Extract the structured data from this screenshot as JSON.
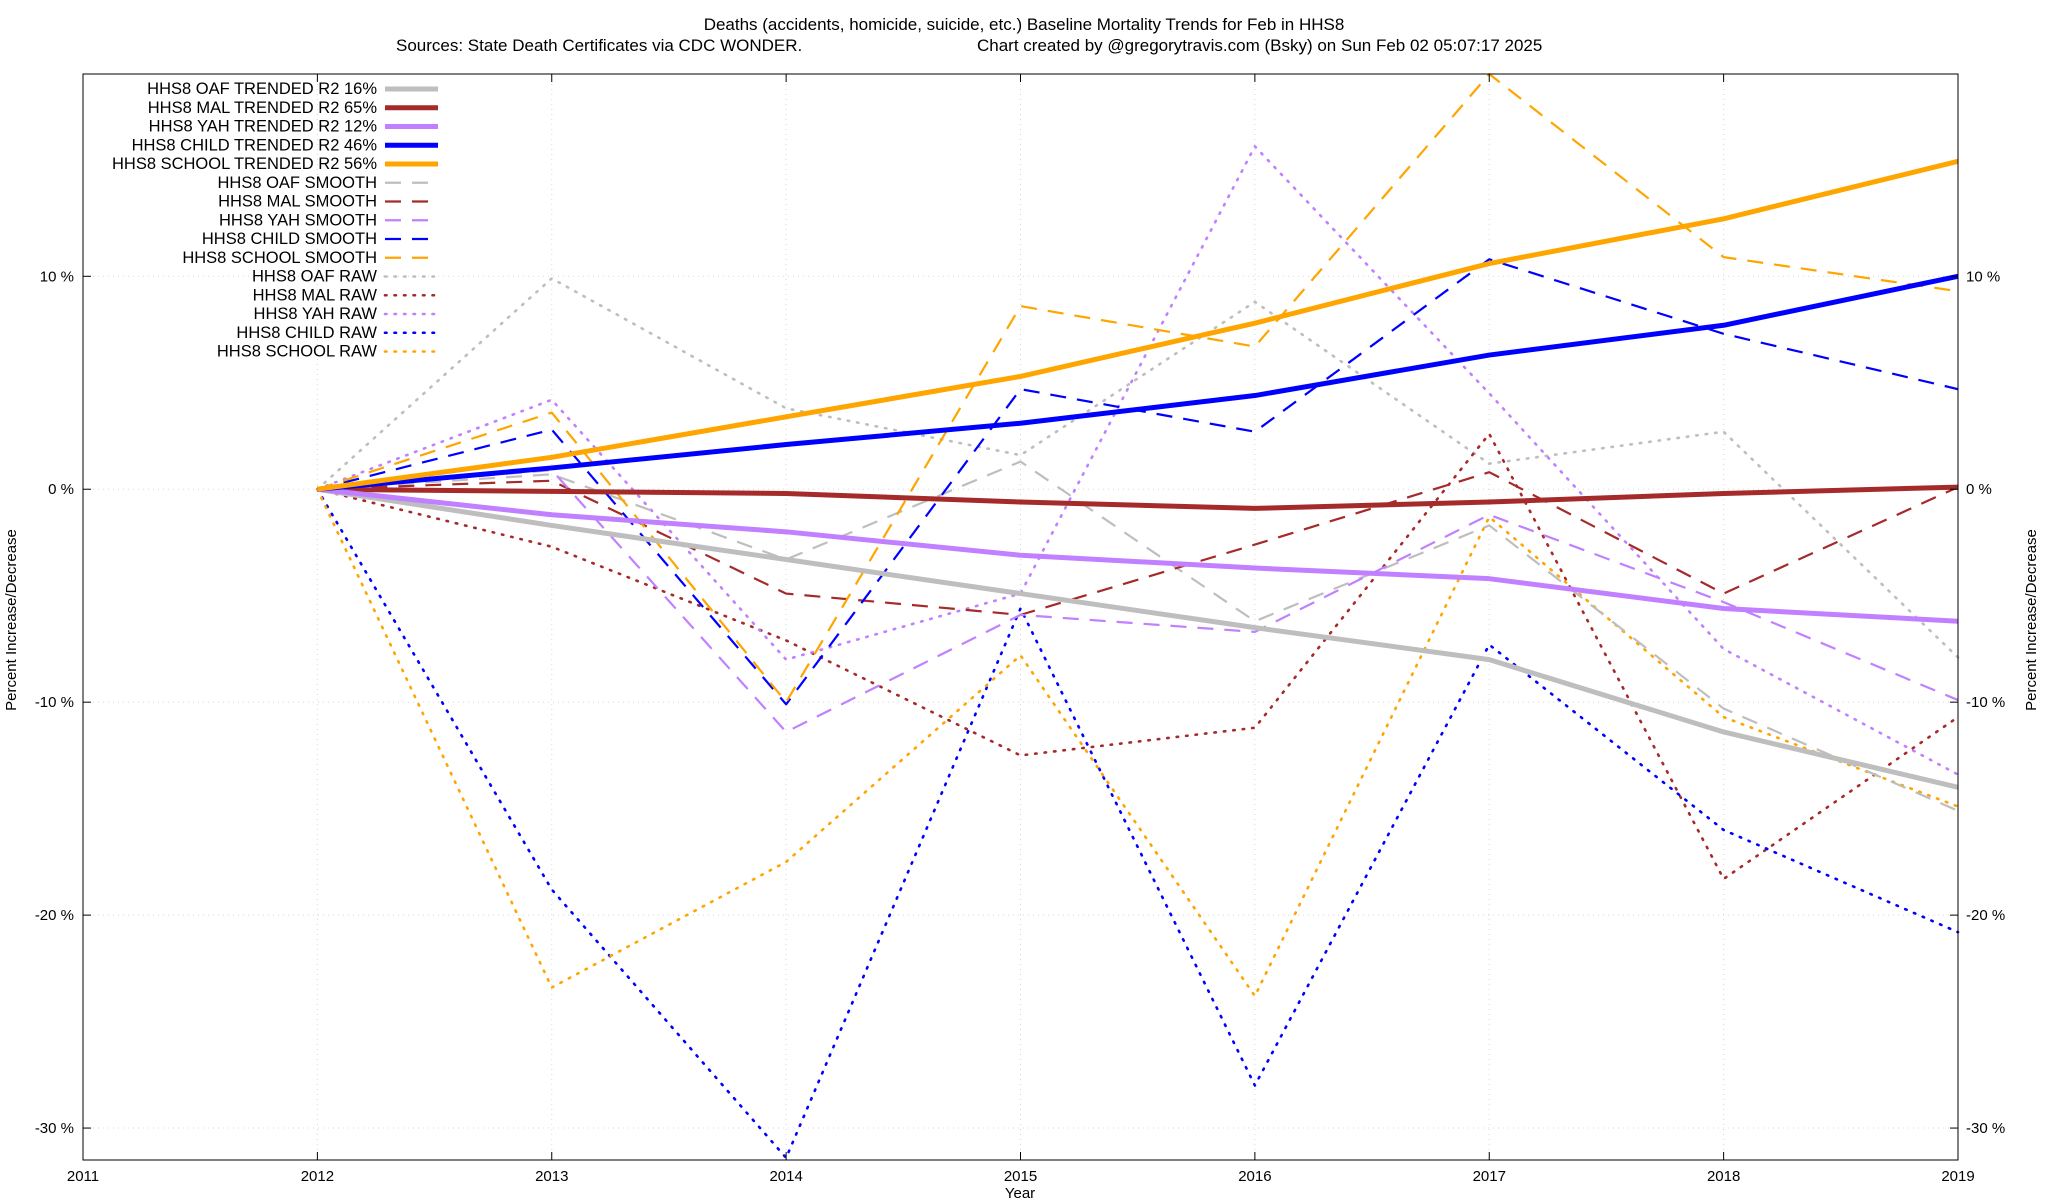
{
  "chart_data": {
    "type": "line",
    "title": "Deaths (accidents, homicide, suicide, etc.)  Baseline Mortality Trends for Feb in HHS8",
    "subtitle_left": "Sources: State Death Certificates via CDC WONDER.",
    "subtitle_right": "Chart created by @gregorytravis.com (Bsky) on Sun Feb 02 05:07:17 2025",
    "xlabel": "Year",
    "ylabel_left": "Percent Increase/Decrease",
    "ylabel_right": "Percent Increase/Decrease",
    "xlim": [
      2011,
      2019
    ],
    "ylim": [
      -31.5,
      19.5
    ],
    "x_ticks": [
      "2011",
      "2012",
      "2013",
      "2014",
      "2015",
      "2016",
      "2017",
      "2018",
      "2019"
    ],
    "y_ticks": [
      {
        "value": 10,
        "label": "10 %"
      },
      {
        "value": 0,
        "label": "0 %"
      },
      {
        "value": -10,
        "label": "-10 %"
      },
      {
        "value": -20,
        "label": "-20 %"
      },
      {
        "value": -30,
        "label": "-30 %"
      }
    ],
    "grid": true,
    "legend_position": "top-left",
    "x": [
      2012,
      2013,
      2014,
      2015,
      2016,
      2017,
      2018,
      2019
    ],
    "series": [
      {
        "name": "HHS8 OAF TRENDED R2  16%",
        "style": "trend",
        "color": "#bebebe",
        "values": [
          0,
          -1.7,
          -3.3,
          -4.9,
          -6.5,
          -8.0,
          -11.4,
          -14.0
        ]
      },
      {
        "name": "HHS8 MAL TRENDED R2  65%",
        "style": "trend",
        "color": "#a52a2a",
        "values": [
          0,
          -0.1,
          -0.2,
          -0.6,
          -0.9,
          -0.6,
          -0.2,
          0.1
        ]
      },
      {
        "name": "HHS8 YAH TRENDED R2  12%",
        "style": "trend",
        "color": "#c080ff",
        "values": [
          0,
          -1.2,
          -2.0,
          -3.1,
          -3.7,
          -4.2,
          -5.6,
          -6.2
        ]
      },
      {
        "name": "HHS8 CHILD TRENDED R2  46%",
        "style": "trend",
        "color": "#0000ff",
        "values": [
          0,
          1.0,
          2.1,
          3.1,
          4.4,
          6.3,
          7.7,
          10.0
        ]
      },
      {
        "name": "HHS8 SCHOOL TRENDED R2  56%",
        "style": "trend",
        "color": "#ffa500",
        "values": [
          0,
          1.5,
          3.4,
          5.3,
          7.8,
          10.6,
          12.7,
          15.4
        ]
      },
      {
        "name": "HHS8 OAF SMOOTH",
        "style": "smooth",
        "color": "#bebebe",
        "values": [
          0,
          0.7,
          -3.3,
          1.3,
          -6.2,
          -1.7,
          -10.3,
          -15.1
        ]
      },
      {
        "name": "HHS8 MAL SMOOTH",
        "style": "smooth",
        "color": "#a52a2a",
        "values": [
          0,
          0.4,
          -4.9,
          -5.9,
          -2.6,
          0.8,
          -4.9,
          0.1
        ]
      },
      {
        "name": "HHS8 YAH SMOOTH",
        "style": "smooth",
        "color": "#c080ff",
        "values": [
          0,
          0.9,
          -11.4,
          -5.9,
          -6.7,
          -1.2,
          -5.3,
          -9.9
        ]
      },
      {
        "name": "HHS8 CHILD SMOOTH",
        "style": "smooth",
        "color": "#0000ff",
        "values": [
          0,
          2.8,
          -10.1,
          4.7,
          2.7,
          10.8,
          7.3,
          4.7
        ]
      },
      {
        "name": "HHS8 SCHOOL SMOOTH",
        "style": "smooth",
        "color": "#ffa500",
        "values": [
          0,
          3.6,
          -10.0,
          8.6,
          6.7,
          19.5,
          10.9,
          9.3
        ]
      },
      {
        "name": "HHS8 OAF RAW",
        "style": "raw",
        "color": "#bebebe",
        "values": [
          0,
          9.9,
          3.8,
          1.6,
          8.8,
          1.2,
          2.7,
          -7.9
        ]
      },
      {
        "name": "HHS8 MAL RAW",
        "style": "raw",
        "color": "#a52a2a",
        "values": [
          0,
          -2.7,
          -7.1,
          -12.5,
          -11.2,
          2.6,
          -18.3,
          -10.7
        ]
      },
      {
        "name": "HHS8 YAH RAW",
        "style": "raw",
        "color": "#c080ff",
        "values": [
          0,
          4.2,
          -8.0,
          -4.9,
          16.1,
          4.5,
          -7.5,
          -13.4
        ]
      },
      {
        "name": "HHS8 CHILD RAW",
        "style": "raw",
        "color": "#0000ff",
        "values": [
          0,
          -18.8,
          -31.4,
          -5.6,
          -28.0,
          -7.3,
          -16.0,
          -20.8
        ]
      },
      {
        "name": "HHS8 SCHOOL RAW",
        "style": "raw",
        "color": "#ffa500",
        "values": [
          0,
          -23.4,
          -17.5,
          -7.8,
          -23.8,
          -1.3,
          -10.7,
          -14.9
        ]
      }
    ]
  }
}
